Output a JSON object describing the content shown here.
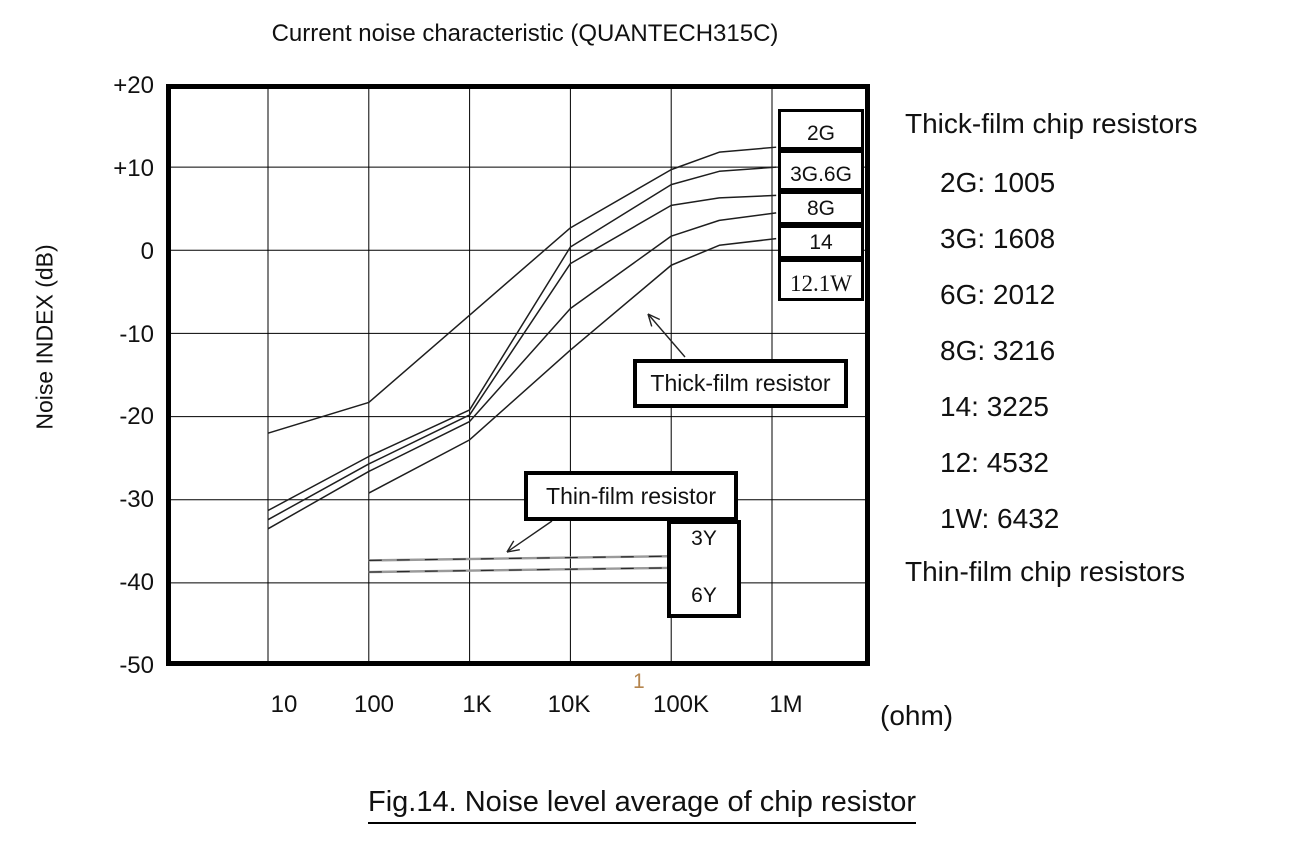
{
  "title": "Current noise characteristic (QUANTECH315C)",
  "y_axis": {
    "label": "Noise INDEX (dB)",
    "ticks": [
      "+20",
      "+10",
      "0",
      "-10",
      "-20",
      "-30",
      "-40",
      "-50"
    ]
  },
  "x_axis": {
    "ticks": [
      "10",
      "100",
      "1K",
      "10K",
      "100K",
      "1M"
    ],
    "unit": "(ohm)",
    "stray_mark": "1"
  },
  "chart_data": {
    "type": "line",
    "title": "Current noise characteristic (QUANTECH315C)",
    "xlabel": "(ohm)",
    "ylabel": "Noise INDEX (dB)",
    "x_scale": "log",
    "xlim": [
      1,
      10000000
    ],
    "ylim": [
      -50,
      20
    ],
    "grid": true,
    "x_tick_values": [
      10,
      100,
      1000,
      10000,
      100000,
      1000000
    ],
    "y_grid_values": [
      10,
      0,
      -10,
      -20,
      -30,
      -40
    ],
    "series": [
      {
        "name": "2G",
        "legend_label": "2G",
        "points": [
          [
            10,
            -22
          ],
          [
            100,
            -18.3
          ],
          [
            1000,
            -7.8
          ],
          [
            10000,
            2.7
          ],
          [
            100000,
            9.7
          ],
          [
            300000,
            11.8
          ],
          [
            1100000,
            12.4
          ]
        ]
      },
      {
        "name": "3G,6G",
        "legend_label": "3G.6G",
        "points": [
          [
            10,
            -31.3
          ],
          [
            100,
            -24.8
          ],
          [
            1000,
            -19.2
          ],
          [
            10000,
            0.4
          ],
          [
            100000,
            7.9
          ],
          [
            300000,
            9.5
          ],
          [
            1100000,
            10
          ]
        ]
      },
      {
        "name": "8G",
        "legend_label": "8G",
        "points": [
          [
            10,
            -32.4
          ],
          [
            100,
            -25.7
          ],
          [
            1000,
            -19.8
          ],
          [
            10000,
            -1.6
          ],
          [
            100000,
            5.4
          ],
          [
            300000,
            6.3
          ],
          [
            1100000,
            6.6
          ]
        ]
      },
      {
        "name": "14",
        "legend_label": "14",
        "points": [
          [
            10,
            -33.5
          ],
          [
            100,
            -26.6
          ],
          [
            1000,
            -20.6
          ],
          [
            10000,
            -7
          ],
          [
            100000,
            1.7
          ],
          [
            300000,
            3.6
          ],
          [
            1100000,
            4.5
          ]
        ]
      },
      {
        "name": "12,1W",
        "legend_label": "12.1W",
        "points": [
          [
            100,
            -29.2
          ],
          [
            1000,
            -22.8
          ],
          [
            10000,
            -12
          ],
          [
            100000,
            -1.8
          ],
          [
            300000,
            0.6
          ],
          [
            1100000,
            1.4
          ]
        ]
      }
    ],
    "thin_series": [
      {
        "name": "3Y",
        "points": [
          [
            100,
            -37.3
          ],
          [
            91000,
            -36.8
          ]
        ]
      },
      {
        "name": "6Y",
        "points": [
          [
            100,
            -38.7
          ],
          [
            91000,
            -38.2
          ]
        ]
      }
    ]
  },
  "annotations": {
    "thick_box": "Thick-film resistor",
    "thin_box": "Thin-film resistor",
    "y_box": {
      "top": "3Y",
      "bottom": "6Y"
    }
  },
  "side_panel": {
    "thick_heading": "Thick-film chip resistors",
    "entries": [
      {
        "text": "2G: 1005"
      },
      {
        "text": "3G: 1608"
      },
      {
        "text": "6G: 2012"
      },
      {
        "text": "8G: 3216"
      },
      {
        "text": "14: 3225"
      },
      {
        "text": "12: 4532"
      },
      {
        "text": "1W: 6432"
      }
    ],
    "thin_heading": "Thin-film chip resistors"
  },
  "caption": "Fig.14. Noise level average of chip resistor",
  "colors": {
    "curve": "#1e1e1e",
    "grid": "#000000",
    "thin_film_gray": "#9a9a9a",
    "thin_film_dark": "#2b2b2b",
    "stray_mark": "#b5854e"
  }
}
